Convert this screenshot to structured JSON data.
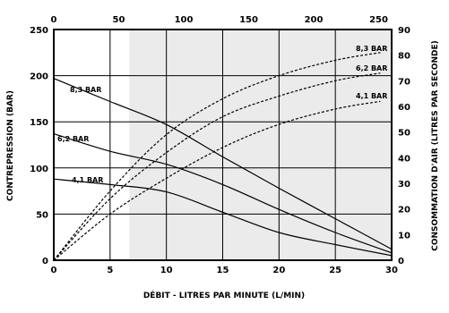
{
  "chart_data": {
    "type": "line",
    "xlabel": "DÉBIT - LITRES PAR MINUTE (L/MIN)",
    "ylabel_left": "CONTREPRESSION (BAR)",
    "ylabel_right": "CONSOMMATION D'AIR (LITRES PAR SECONDE)",
    "x_range": [
      0,
      30
    ],
    "x_ticks": [
      0,
      5,
      10,
      15,
      20,
      25,
      30
    ],
    "x2_range": [
      0,
      260
    ],
    "x2_ticks": [
      0,
      50,
      100,
      150,
      200,
      250
    ],
    "y_left_range": [
      0,
      250
    ],
    "y_left_ticks": [
      0,
      50,
      100,
      150,
      200,
      250
    ],
    "y_right_range": [
      0,
      90
    ],
    "y_right_ticks": [
      0,
      10,
      20,
      30,
      40,
      50,
      60,
      70,
      80,
      90
    ],
    "grid": true,
    "shaded_x_range": [
      6.7,
      30
    ],
    "series": [
      {
        "name": "8,3 BAR",
        "axis": "left",
        "style": "solid",
        "x": [
          0,
          5,
          10,
          15,
          20,
          25,
          30
        ],
        "y": [
          197,
          172,
          147,
          112,
          78,
          45,
          12
        ]
      },
      {
        "name": "6,2 BAR",
        "axis": "left",
        "style": "solid",
        "x": [
          0,
          5,
          10,
          15,
          20,
          25,
          30
        ],
        "y": [
          137,
          118,
          104,
          82,
          55,
          30,
          8
        ]
      },
      {
        "name": "4,1 BAR",
        "axis": "left",
        "style": "solid",
        "x": [
          0,
          5,
          10,
          15,
          20,
          25,
          30
        ],
        "y": [
          88,
          82,
          74,
          52,
          30,
          17,
          5
        ]
      },
      {
        "name": "8,3 BAR",
        "axis": "right",
        "style": "dashed",
        "x": [
          0,
          5,
          10,
          15,
          20,
          25,
          29
        ],
        "y": [
          0,
          27,
          49,
          63,
          72,
          78,
          81
        ]
      },
      {
        "name": "6,2 BAR",
        "axis": "right",
        "style": "dashed",
        "x": [
          0,
          5,
          10,
          15,
          20,
          25,
          29
        ],
        "y": [
          0,
          24,
          42,
          56,
          64,
          70,
          73
        ]
      },
      {
        "name": "4,1 BAR",
        "axis": "right",
        "style": "dashed",
        "x": [
          0,
          5,
          10,
          15,
          20,
          25,
          29
        ],
        "y": [
          0,
          18,
          32,
          44,
          53,
          59,
          62
        ]
      }
    ]
  }
}
